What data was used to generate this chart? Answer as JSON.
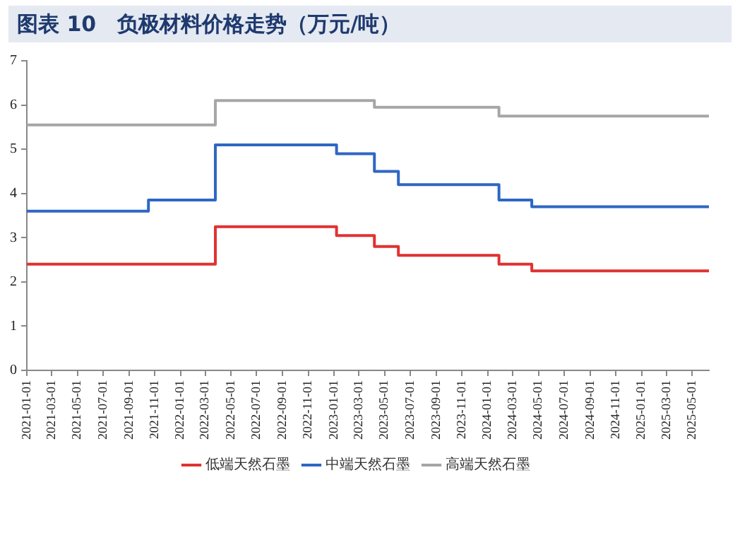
{
  "chart_data": {
    "type": "step",
    "title": "图表 10　负极材料价格走势（万元/吨）",
    "xlim": [
      "2021-01-01",
      "2025-06-10"
    ],
    "xticks": [
      "2021-01-01",
      "2021-03-01",
      "2021-05-01",
      "2021-07-01",
      "2021-09-01",
      "2021-11-01",
      "2022-01-01",
      "2022-03-01",
      "2022-05-01",
      "2022-07-01",
      "2022-09-01",
      "2022-11-01",
      "2023-01-01",
      "2023-03-01",
      "2023-05-01",
      "2023-07-01",
      "2023-09-01",
      "2023-11-01",
      "2024-01-01",
      "2024-03-01",
      "2024-05-01",
      "2024-07-01",
      "2024-09-01",
      "2024-11-01",
      "2025-01-01",
      "2025-03-01",
      "2025-05-01"
    ],
    "ylim": [
      0,
      7
    ],
    "yticks": [
      0,
      1,
      2,
      3,
      4,
      5,
      6,
      7
    ],
    "grid": false,
    "legend": "bottom",
    "marker": "none",
    "line_style": "solid",
    "series": [
      {
        "name": "低端天然石墨",
        "color": "#e03232",
        "x": [
          "2021-01-01",
          "2022-03-25",
          "2023-01-07",
          "2023-04-07",
          "2023-06-03",
          "2024-01-28",
          "2024-04-15",
          "2025-06-10"
        ],
        "values": [
          2.4,
          3.25,
          3.05,
          2.8,
          2.6,
          2.4,
          2.25,
          2.25
        ]
      },
      {
        "name": "中端天然石墨",
        "color": "#2e66c4",
        "x": [
          "2021-01-01",
          "2021-10-17",
          "2022-03-25",
          "2023-01-07",
          "2023-04-07",
          "2023-06-03",
          "2024-01-28",
          "2024-04-15",
          "2025-06-10"
        ],
        "values": [
          3.6,
          3.85,
          5.1,
          4.9,
          4.5,
          4.2,
          3.85,
          3.7,
          3.7
        ]
      },
      {
        "name": "高端天然石墨",
        "color": "#a6a6a6",
        "x": [
          "2021-01-01",
          "2022-03-25",
          "2023-04-07",
          "2024-01-28",
          "2025-06-10"
        ],
        "values": [
          5.55,
          6.1,
          5.95,
          5.75,
          5.75
        ]
      }
    ]
  }
}
